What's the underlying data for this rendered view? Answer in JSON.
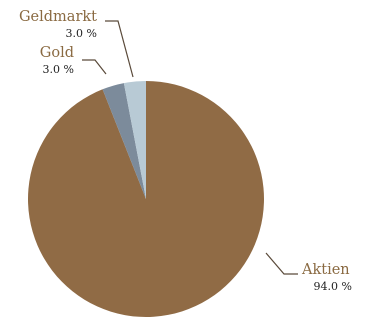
{
  "chart_data": {
    "type": "pie",
    "slices": [
      {
        "name": "Aktien",
        "value": 94.0,
        "value_label": "94.0 %",
        "color": "#906b45"
      },
      {
        "name": "Gold",
        "value": 3.0,
        "value_label": "3.0 %",
        "color": "#7c8b9b"
      },
      {
        "name": "Geldmarkt",
        "value": 3.0,
        "value_label": "3.0 %",
        "color": "#b8cad5"
      }
    ],
    "label_color": "#8a6a42",
    "leader_color": "#5a4a3a"
  }
}
